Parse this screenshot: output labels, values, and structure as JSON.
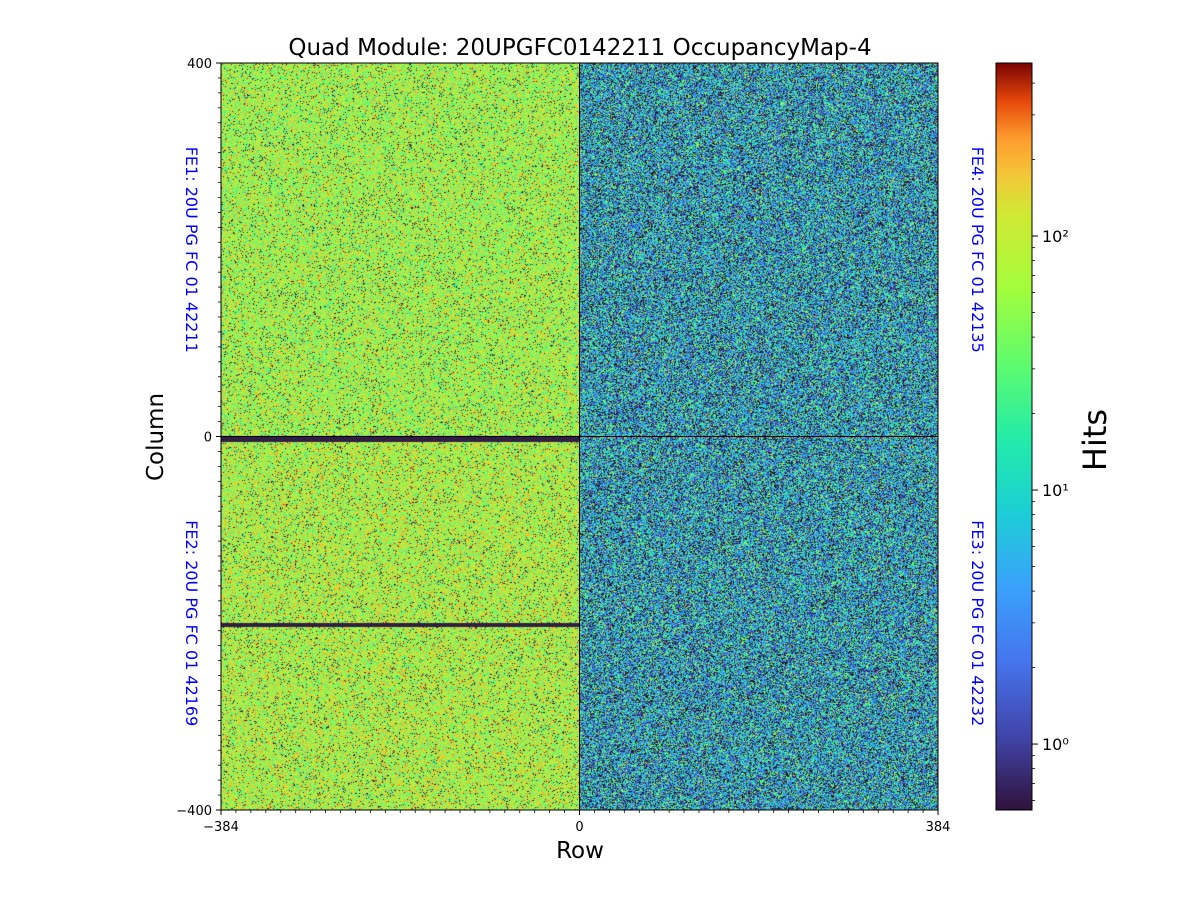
{
  "chart_data": {
    "type": "heatmap",
    "title": "Quad Module: 20UPGFC0142211 OccupancyMap-4",
    "xlabel": "Row",
    "ylabel": "Column",
    "xlim": [
      -384,
      384
    ],
    "ylim": [
      -400,
      400
    ],
    "x_ticks": [
      -384,
      0,
      384
    ],
    "x_tick_labels": [
      "−384",
      "0",
      "384"
    ],
    "y_ticks": [
      -400,
      0,
      400
    ],
    "y_tick_labels": [
      "−400",
      "0",
      "400"
    ],
    "grid": false,
    "colormap": "turbo",
    "colorbar": {
      "label": "Hits",
      "scale": "log",
      "range": [
        0.55,
        480
      ],
      "ticks": [
        1,
        10,
        100
      ],
      "tick_labels": [
        "10⁰",
        "10¹",
        "10²"
      ]
    },
    "quadrants": [
      {
        "label": "FE1: 20U PG FC 01 42211",
        "x_range": [
          -384,
          0
        ],
        "y_range": [
          0,
          400
        ],
        "median_hits": 18,
        "side": "left"
      },
      {
        "label": "FE2: 20U PG FC 01 42169",
        "x_range": [
          -384,
          0
        ],
        "y_range": [
          -400,
          0
        ],
        "median_hits": 20,
        "side": "left"
      },
      {
        "label": "FE3: 20U PG FC 01 42232",
        "x_range": [
          0,
          384
        ],
        "y_range": [
          -400,
          0
        ],
        "median_hits": 2,
        "side": "right"
      },
      {
        "label": "FE4: 20U PG FC 01 42135",
        "x_range": [
          0,
          384
        ],
        "y_range": [
          0,
          400
        ],
        "median_hits": 2,
        "side": "right"
      }
    ],
    "dead_rows": [
      {
        "x_range": [
          -384,
          0
        ],
        "y_range": [
          -6,
          0
        ],
        "hits": 0.6
      },
      {
        "x_range": [
          -384,
          0
        ],
        "y_range": [
          -204,
          -200
        ],
        "hits": 0.6
      }
    ]
  }
}
